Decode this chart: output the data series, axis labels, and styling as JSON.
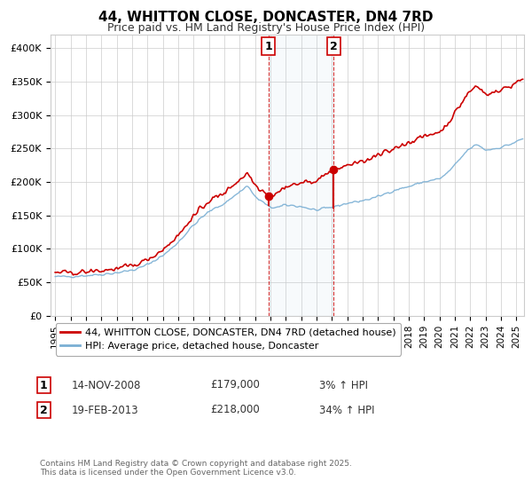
{
  "title": "44, WHITTON CLOSE, DONCASTER, DN4 7RD",
  "subtitle": "Price paid vs. HM Land Registry's House Price Index (HPI)",
  "ylabel_ticks": [
    "£0",
    "£50K",
    "£100K",
    "£150K",
    "£200K",
    "£250K",
    "£300K",
    "£350K",
    "£400K"
  ],
  "ytick_values": [
    0,
    50000,
    100000,
    150000,
    200000,
    250000,
    300000,
    350000,
    400000
  ],
  "ylim": [
    0,
    420000
  ],
  "xlim_start": 1994.7,
  "xlim_end": 2025.5,
  "sale1_x": 2008.87,
  "sale1_y": 179000,
  "sale2_x": 2013.12,
  "sale2_y": 218000,
  "legend_line1": "44, WHITTON CLOSE, DONCASTER, DN4 7RD (detached house)",
  "legend_line2": "HPI: Average price, detached house, Doncaster",
  "footer": "Contains HM Land Registry data © Crown copyright and database right 2025.\nThis data is licensed under the Open Government Licence v3.0.",
  "line_color_red": "#cc0000",
  "line_color_blue": "#7aafd4",
  "background_color": "#ffffff",
  "grid_color": "#cccccc",
  "xtick_years": [
    1995,
    1996,
    1997,
    1998,
    1999,
    2000,
    2001,
    2002,
    2003,
    2004,
    2005,
    2006,
    2007,
    2008,
    2009,
    2010,
    2011,
    2012,
    2013,
    2014,
    2015,
    2016,
    2017,
    2018,
    2019,
    2020,
    2021,
    2022,
    2023,
    2024,
    2025
  ]
}
